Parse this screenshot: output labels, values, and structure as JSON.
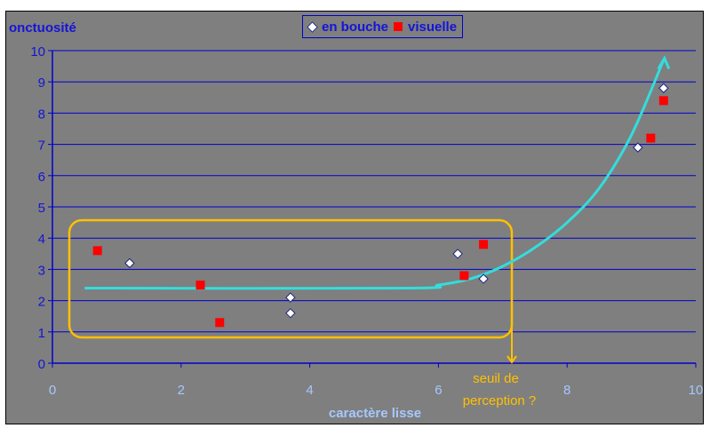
{
  "chart_data": {
    "type": "scatter",
    "ylabel": "onctuosité",
    "xlabel": "caractère lisse",
    "xlim": [
      0,
      10
    ],
    "ylim": [
      0,
      10
    ],
    "x_ticks": [
      "0",
      "2",
      "4",
      "6",
      "8",
      "10"
    ],
    "y_ticks": [
      "0",
      "1",
      "2",
      "3",
      "4",
      "5",
      "6",
      "7",
      "8",
      "9",
      "10"
    ],
    "grid": "horizontal",
    "legend_position": "top-center",
    "series": [
      {
        "name": "en bouche",
        "marker": "white-diamond",
        "x": [
          1.2,
          3.7,
          3.7,
          6.3,
          6.7,
          9.1,
          9.5
        ],
        "y": [
          3.2,
          2.1,
          1.6,
          3.5,
          2.7,
          6.9,
          8.8
        ]
      },
      {
        "name": "visuelle",
        "marker": "red-square",
        "x": [
          0.7,
          2.3,
          2.6,
          6.4,
          6.7,
          9.3,
          9.5
        ],
        "y": [
          3.6,
          2.5,
          1.3,
          2.8,
          3.8,
          7.2,
          8.4
        ]
      }
    ],
    "trend_curve": {
      "color": "#33dddd",
      "x": [
        0.5,
        5.5,
        6.0,
        6.5,
        7.0,
        7.5,
        8.0,
        8.5,
        9.0,
        9.5
      ],
      "y": [
        2.4,
        2.4,
        2.5,
        2.7,
        3.1,
        3.7,
        4.5,
        5.6,
        7.3,
        9.7
      ]
    },
    "annotation": {
      "text_line1": "seuil de",
      "text_line2": "perception ?",
      "color": "#ffc000"
    },
    "colors": {
      "background": "#7f7f7f",
      "gridline": "#0000cc",
      "axis_label": "#1414d9",
      "tick_label": "#a6c8ff",
      "highlight_box": "#ffc000"
    }
  }
}
